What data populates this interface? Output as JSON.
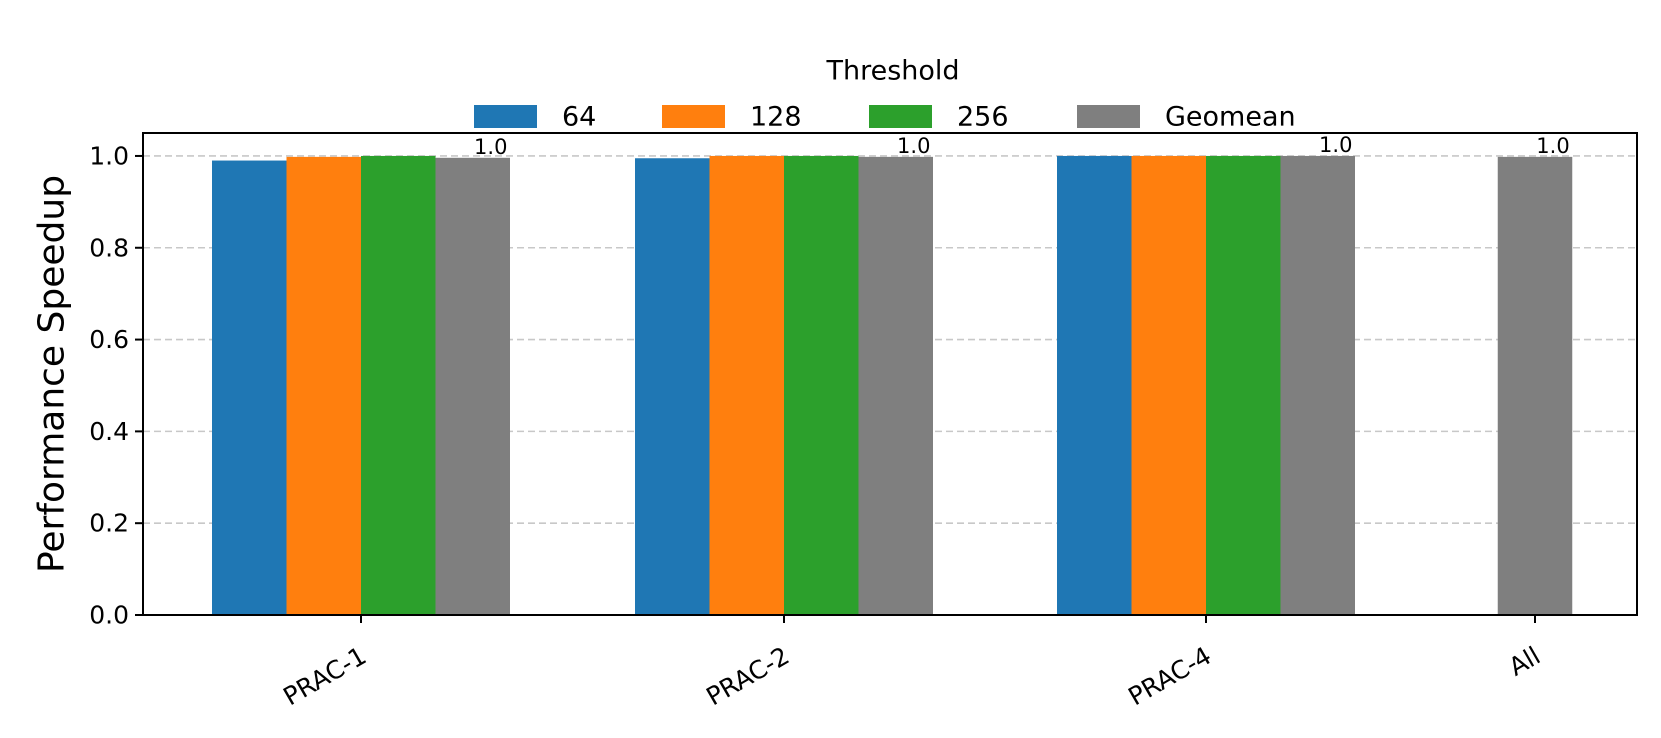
{
  "chart_data": {
    "type": "bar",
    "categories": [
      "PRAC-1",
      "PRAC-2",
      "PRAC-4",
      "All"
    ],
    "series": [
      {
        "name": "64",
        "color": "#1f77b4",
        "values": [
          0.99,
          0.995,
          1.0,
          null
        ]
      },
      {
        "name": "128",
        "color": "#ff7f0e",
        "values": [
          0.998,
          1.0,
          1.0,
          null
        ]
      },
      {
        "name": "256",
        "color": "#2ca02c",
        "values": [
          1.0,
          1.0,
          1.0,
          null
        ]
      },
      {
        "name": "Geomean",
        "color": "#7f7f7f",
        "values": [
          0.996,
          0.998,
          1.0,
          0.998
        ]
      }
    ],
    "data_labels": [
      {
        "category": "PRAC-1",
        "series": "Geomean",
        "text": "1.0"
      },
      {
        "category": "PRAC-2",
        "series": "Geomean",
        "text": "1.0"
      },
      {
        "category": "PRAC-4",
        "series": "Geomean",
        "text": "1.0"
      },
      {
        "category": "All",
        "series": "Geomean",
        "text": "1.0"
      }
    ],
    "title": "",
    "xlabel": "",
    "ylabel": "Performance Speedup",
    "ylim": [
      0,
      1.05
    ],
    "yticks": [
      0.0,
      0.2,
      0.4,
      0.6,
      0.8,
      1.0
    ],
    "ytick_labels": [
      "0.0",
      "0.2",
      "0.4",
      "0.6",
      "0.8",
      "1.0"
    ],
    "grid": "y-dashed",
    "legend": {
      "title": "Threshold",
      "placement": "top-center",
      "columns": 4
    }
  }
}
